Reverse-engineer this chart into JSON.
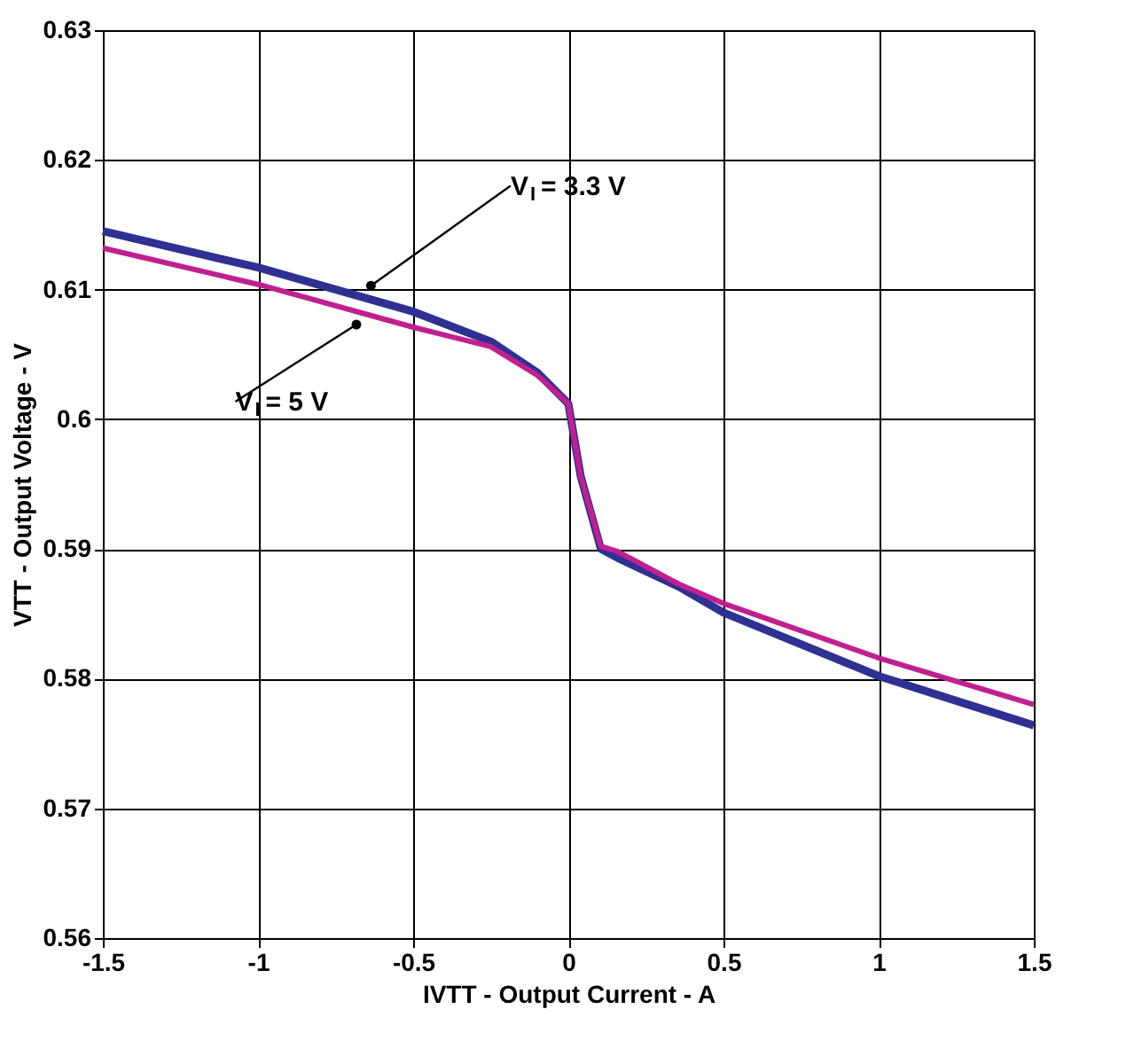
{
  "chart_data": {
    "type": "line",
    "xlabel": "IVTT - Output Current - A",
    "ylabel": "VTT - Output Voltage - V",
    "xlim": [
      -1.5,
      1.5
    ],
    "xticks": [
      -1.5,
      -1,
      -0.5,
      0,
      0.5,
      1,
      1.5
    ],
    "ylim": [
      0.56,
      0.63
    ],
    "yticks": [
      0.56,
      0.57,
      0.58,
      0.59,
      0.6,
      0.61,
      0.62,
      0.63
    ],
    "grid": true,
    "line_style": "solid",
    "series": [
      {
        "color": "#2e3192",
        "x": [
          -1.5,
          -1,
          -0.5,
          -0.25,
          -0.1,
          0,
          0.04,
          0.105,
          0.16,
          0.356,
          0.5,
          1,
          1.5
        ],
        "values": [
          0.6145,
          0.6117,
          0.6083,
          0.606,
          0.6036,
          0.6012,
          0.5956,
          0.59,
          0.5893,
          0.5871,
          0.5851,
          0.5802,
          0.5764
        ]
      },
      {
        "color": "#c0208f",
        "x": [
          -1.5,
          -1,
          -0.5,
          -0.25,
          -0.1,
          0,
          0.04,
          0.105,
          0.16,
          0.356,
          0.5,
          1,
          1.5
        ],
        "values": [
          0.6132,
          0.6104,
          0.6071,
          0.6056,
          0.6034,
          0.6012,
          0.5956,
          0.5902,
          0.5898,
          0.5873,
          0.5858,
          0.5816,
          0.578
        ]
      }
    ],
    "annotations": [
      {
        "text": "V$_{I}$ = 3.3 V",
        "x": -0.636,
        "y": 0.6103
      },
      {
        "text": "V$_{I}$ = 5 V",
        "x": -0.683,
        "y": 0.6073
      }
    ]
  }
}
